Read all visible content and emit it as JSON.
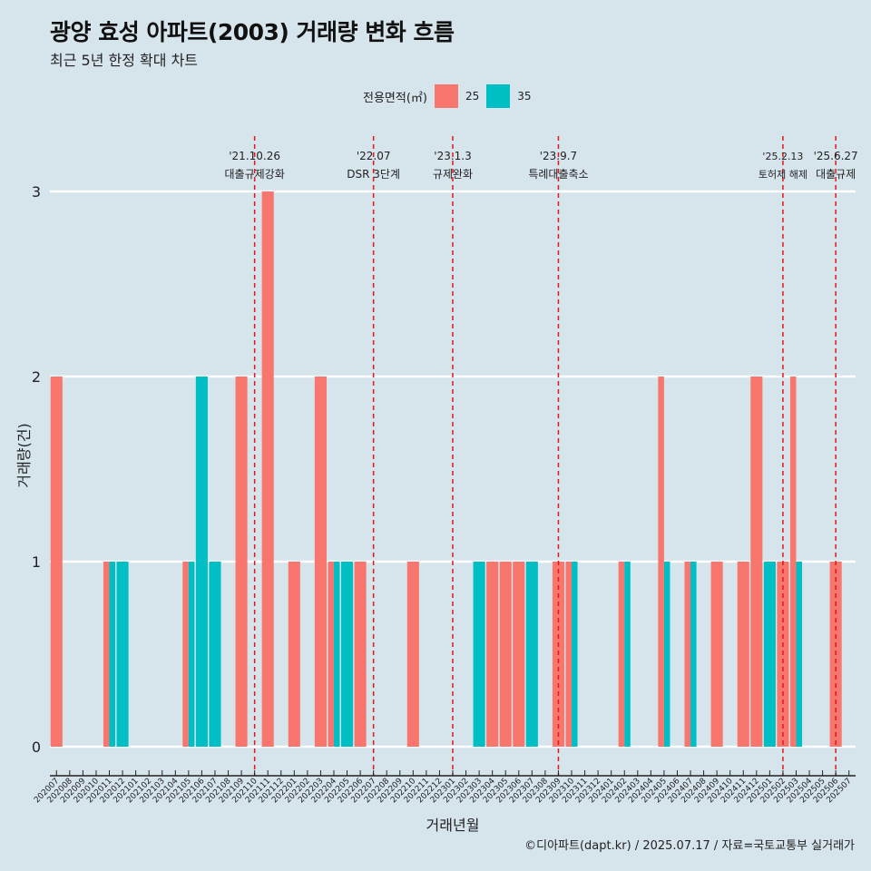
{
  "title": "광양 효성 아파트(2003) 거래량 변화 흐름",
  "subtitle": "최근 5년 한정 확대 차트",
  "caption": "©디아파트(dapt.kr) / 2025.07.17 / 자료=국토교통부 실거래가",
  "legend": {
    "title": "전용면적(㎡)",
    "items": [
      {
        "label": "25",
        "color": "#f8766d"
      },
      {
        "label": "35",
        "color": "#00bfc4"
      }
    ]
  },
  "chart_data": {
    "type": "bar",
    "xlabel": "거래년월",
    "ylabel": "거래량(건)",
    "ylim": [
      0,
      3
    ],
    "yticks": [
      0,
      1,
      2,
      3
    ],
    "grid": true,
    "legend_position": "top",
    "categories": [
      "202007",
      "202008",
      "202009",
      "202010",
      "202011",
      "202012",
      "202101",
      "202102",
      "202103",
      "202104",
      "202105",
      "202106",
      "202107",
      "202108",
      "202109",
      "202110",
      "202111",
      "202112",
      "202201",
      "202202",
      "202203",
      "202204",
      "202205",
      "202206",
      "202207",
      "202208",
      "202209",
      "202210",
      "202211",
      "202212",
      "202301",
      "202302",
      "202303",
      "202304",
      "202305",
      "202306",
      "202307",
      "202308",
      "202309",
      "202310",
      "202311",
      "202312",
      "202401",
      "202402",
      "202403",
      "202404",
      "202405",
      "202406",
      "202407",
      "202408",
      "202409",
      "202410",
      "202411",
      "202412",
      "202501",
      "202502",
      "202503",
      "202504",
      "202505",
      "202506",
      "202507"
    ],
    "series": [
      {
        "name": "25",
        "color": "#f8766d",
        "values": [
          2,
          0,
          0,
          0,
          1,
          0,
          0,
          0,
          0,
          0,
          1,
          0,
          0,
          0,
          2,
          0,
          3,
          0,
          1,
          0,
          2,
          1,
          0,
          1,
          0,
          0,
          0,
          1,
          0,
          0,
          0,
          0,
          0,
          1,
          1,
          1,
          0,
          0,
          1,
          1,
          0,
          0,
          0,
          1,
          0,
          0,
          2,
          0,
          1,
          0,
          1,
          0,
          1,
          2,
          0,
          1,
          2,
          0,
          0,
          1,
          0
        ]
      },
      {
        "name": "35",
        "color": "#00bfc4",
        "values": [
          0,
          0,
          0,
          0,
          1,
          1,
          0,
          0,
          0,
          0,
          1,
          2,
          1,
          0,
          0,
          0,
          0,
          0,
          0,
          0,
          0,
          1,
          1,
          0,
          0,
          0,
          0,
          0,
          0,
          0,
          0,
          0,
          1,
          0,
          0,
          0,
          1,
          0,
          0,
          1,
          0,
          0,
          0,
          1,
          0,
          0,
          1,
          0,
          1,
          0,
          0,
          0,
          0,
          0,
          1,
          0,
          1,
          0,
          0,
          0,
          0
        ]
      }
    ],
    "annotations": [
      {
        "date": "'21.10.26",
        "label": "대출규제강화",
        "x": "202110"
      },
      {
        "date": "'22.07",
        "label": "DSR 3단계",
        "x": "202207"
      },
      {
        "date": "'23.1.3",
        "label": "규제완화",
        "x": "202301"
      },
      {
        "date": "'23.9.7",
        "label": "특례대출축소",
        "x": "202309"
      },
      {
        "date": "'25.2.13",
        "label": "토허제 해제",
        "x": "202502"
      },
      {
        "date": "'25.6.27",
        "label": "대출규제",
        "x": "202506"
      }
    ]
  }
}
